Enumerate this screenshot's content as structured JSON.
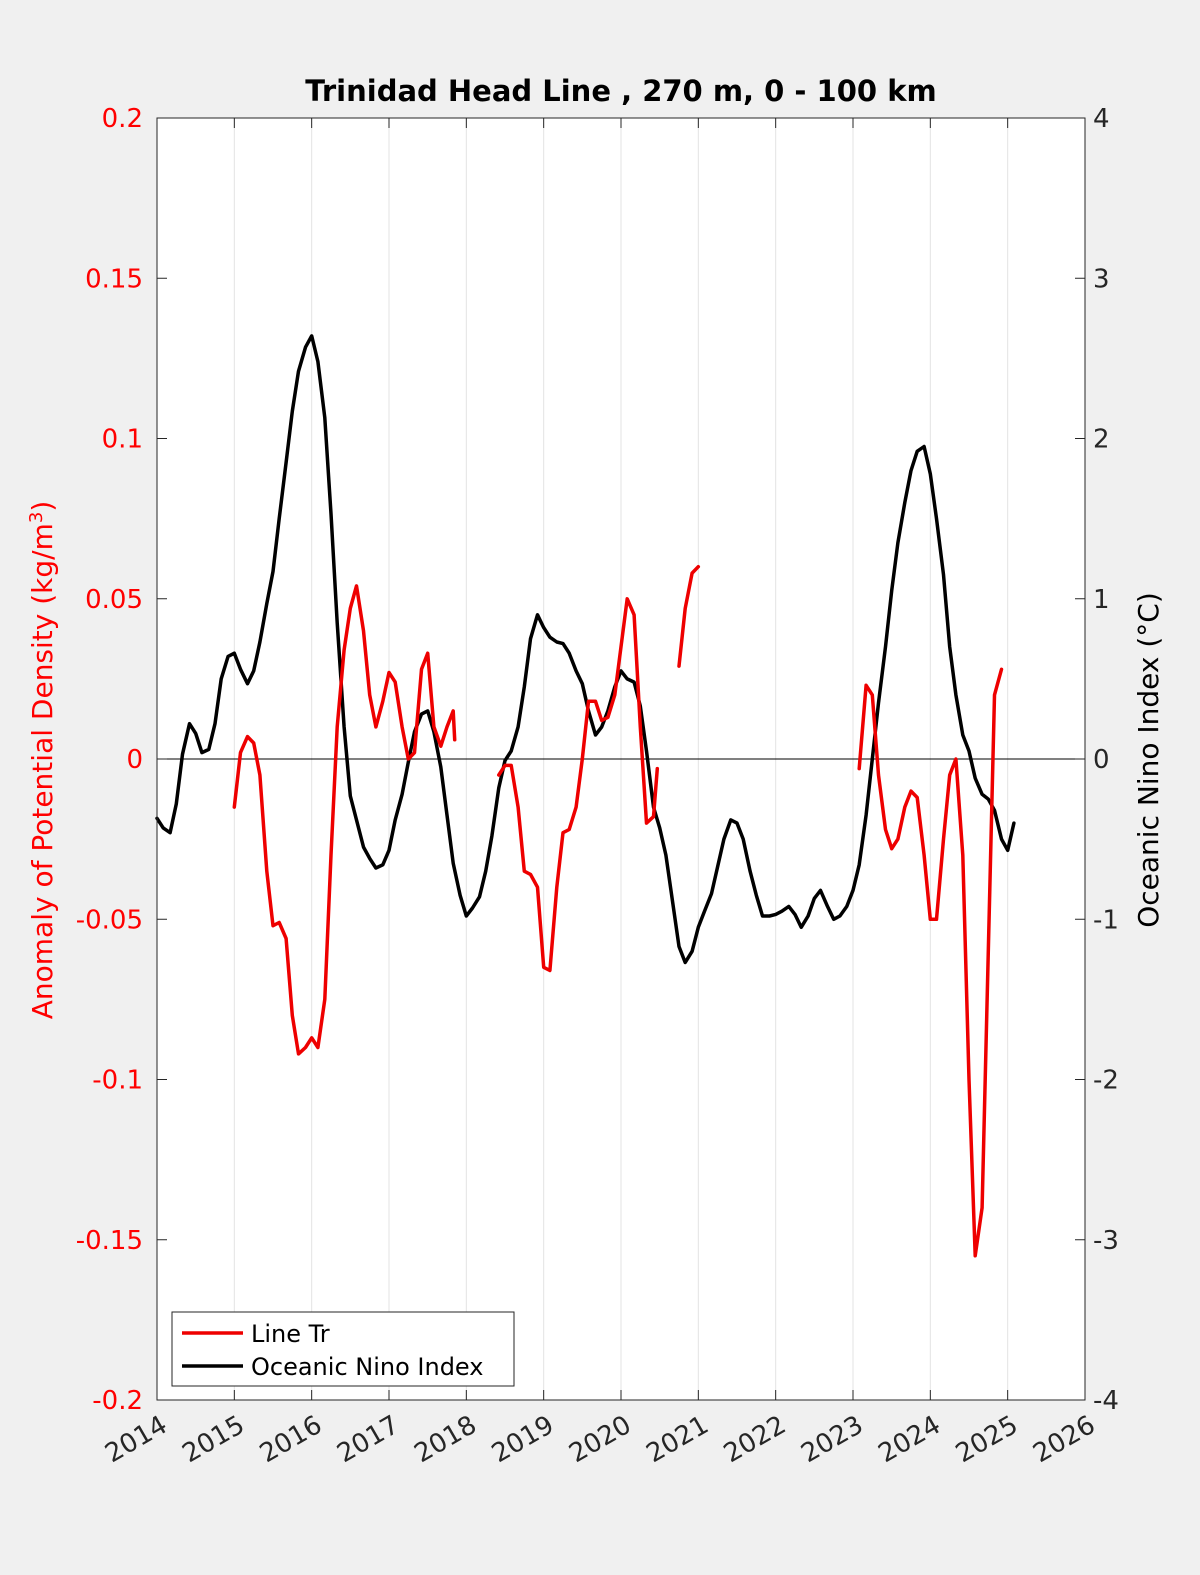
{
  "chart_data": {
    "type": "line",
    "title": "Trinidad Head Line , 270 m, 0 - 100 km",
    "xlabel": "",
    "ylabel_left": "Anomaly of Potential Density (kg/m",
    "ylabel_left_sup": "3",
    "ylabel_left_close": ")",
    "ylabel_right": "Oceanic Nino Index (°C)",
    "xlim": [
      2014,
      2026
    ],
    "ylim_left": [
      -0.2,
      0.2
    ],
    "ylim_right": [
      -4,
      4
    ],
    "x_ticks": [
      "2014",
      "2015",
      "2016",
      "2017",
      "2018",
      "2019",
      "2020",
      "2021",
      "2022",
      "2023",
      "2024",
      "2025",
      "2026"
    ],
    "y_left_ticks": [
      "-0.2",
      "-0.15",
      "-0.1",
      "-0.05",
      "0",
      "0.05",
      "0.1",
      "0.15",
      "0.2"
    ],
    "y_right_ticks": [
      "-4",
      "-3",
      "-2",
      "-1",
      "0",
      "1",
      "2",
      "3",
      "4"
    ],
    "grid": "vertical",
    "zero_line": true,
    "legend_position": "bottom-left",
    "colors": {
      "left_axis": "#ff0000",
      "line_tr": "#ee0000",
      "oni": "#000000",
      "background": "#f0f0f0",
      "plot_bg": "#ffffff"
    },
    "series": [
      {
        "name": "Line Tr",
        "axis": "left",
        "segments": [
          [
            [
              2015.0,
              -0.015
            ],
            [
              2015.08,
              0.002
            ],
            [
              2015.17,
              0.007
            ],
            [
              2015.25,
              0.005
            ],
            [
              2015.33,
              -0.005
            ],
            [
              2015.42,
              -0.035
            ],
            [
              2015.5,
              -0.052
            ],
            [
              2015.58,
              -0.051
            ],
            [
              2015.67,
              -0.056
            ],
            [
              2015.75,
              -0.08
            ],
            [
              2015.83,
              -0.092
            ],
            [
              2015.92,
              -0.09
            ],
            [
              2016.0,
              -0.087
            ],
            [
              2016.08,
              -0.09
            ],
            [
              2016.17,
              -0.075
            ],
            [
              2016.25,
              -0.03
            ],
            [
              2016.33,
              0.01
            ],
            [
              2016.42,
              0.034
            ],
            [
              2016.5,
              0.047
            ],
            [
              2016.58,
              0.054
            ],
            [
              2016.67,
              0.04
            ],
            [
              2016.75,
              0.02
            ],
            [
              2016.83,
              0.01
            ],
            [
              2016.92,
              0.018
            ],
            [
              2017.0,
              0.027
            ],
            [
              2017.08,
              0.024
            ],
            [
              2017.17,
              0.01
            ],
            [
              2017.25,
              0.0
            ],
            [
              2017.33,
              0.002
            ],
            [
              2017.42,
              0.028
            ],
            [
              2017.5,
              0.033
            ],
            [
              2017.58,
              0.01
            ],
            [
              2017.67,
              0.004
            ],
            [
              2017.75,
              0.01
            ],
            [
              2017.83,
              0.015
            ],
            [
              2017.85,
              0.006
            ]
          ],
          [
            [
              2018.42,
              -0.005
            ],
            [
              2018.5,
              -0.002
            ],
            [
              2018.58,
              -0.002
            ],
            [
              2018.67,
              -0.015
            ],
            [
              2018.75,
              -0.035
            ],
            [
              2018.83,
              -0.036
            ],
            [
              2018.92,
              -0.04
            ],
            [
              2019.0,
              -0.065
            ],
            [
              2019.08,
              -0.066
            ],
            [
              2019.17,
              -0.04
            ],
            [
              2019.25,
              -0.023
            ],
            [
              2019.33,
              -0.022
            ],
            [
              2019.42,
              -0.015
            ],
            [
              2019.5,
              0.0
            ],
            [
              2019.58,
              0.018
            ],
            [
              2019.67,
              0.018
            ],
            [
              2019.75,
              0.012
            ],
            [
              2019.83,
              0.013
            ],
            [
              2019.92,
              0.02
            ],
            [
              2020.0,
              0.035
            ],
            [
              2020.08,
              0.05
            ],
            [
              2020.17,
              0.045
            ],
            [
              2020.25,
              0.01
            ],
            [
              2020.33,
              -0.02
            ],
            [
              2020.42,
              -0.018
            ],
            [
              2020.47,
              -0.003
            ]
          ],
          [
            [
              2020.75,
              0.029
            ],
            [
              2020.83,
              0.047
            ],
            [
              2020.92,
              0.058
            ],
            [
              2021.0,
              0.06
            ]
          ],
          [
            [
              2023.08,
              -0.003
            ],
            [
              2023.17,
              0.023
            ],
            [
              2023.25,
              0.02
            ],
            [
              2023.33,
              -0.005
            ],
            [
              2023.42,
              -0.022
            ],
            [
              2023.5,
              -0.028
            ],
            [
              2023.58,
              -0.025
            ],
            [
              2023.67,
              -0.015
            ],
            [
              2023.75,
              -0.01
            ],
            [
              2023.83,
              -0.012
            ],
            [
              2023.92,
              -0.03
            ],
            [
              2024.0,
              -0.05
            ],
            [
              2024.08,
              -0.05
            ],
            [
              2024.17,
              -0.025
            ],
            [
              2024.25,
              -0.005
            ],
            [
              2024.33,
              0.0
            ],
            [
              2024.42,
              -0.03
            ],
            [
              2024.5,
              -0.1
            ],
            [
              2024.58,
              -0.155
            ],
            [
              2024.67,
              -0.14
            ],
            [
              2024.75,
              -0.06
            ],
            [
              2024.83,
              0.02
            ],
            [
              2024.92,
              0.028
            ]
          ]
        ]
      },
      {
        "name": "Oceanic Nino Index",
        "axis": "right",
        "segments": [
          [
            [
              2014.0,
              -0.37
            ],
            [
              2014.08,
              -0.43
            ],
            [
              2014.17,
              -0.46
            ],
            [
              2014.25,
              -0.28
            ],
            [
              2014.33,
              0.03
            ],
            [
              2014.42,
              0.22
            ],
            [
              2014.5,
              0.16
            ],
            [
              2014.58,
              0.04
            ],
            [
              2014.67,
              0.06
            ],
            [
              2014.75,
              0.22
            ],
            [
              2014.83,
              0.5
            ],
            [
              2014.92,
              0.64
            ],
            [
              2015.0,
              0.66
            ],
            [
              2015.08,
              0.56
            ],
            [
              2015.17,
              0.47
            ],
            [
              2015.25,
              0.55
            ],
            [
              2015.33,
              0.73
            ],
            [
              2015.42,
              0.97
            ],
            [
              2015.5,
              1.17
            ],
            [
              2015.58,
              1.5
            ],
            [
              2015.67,
              1.85
            ],
            [
              2015.75,
              2.17
            ],
            [
              2015.83,
              2.42
            ],
            [
              2015.92,
              2.57
            ],
            [
              2016.0,
              2.64
            ],
            [
              2016.08,
              2.48
            ],
            [
              2016.17,
              2.13
            ],
            [
              2016.25,
              1.53
            ],
            [
              2016.33,
              0.85
            ],
            [
              2016.42,
              0.2
            ],
            [
              2016.5,
              -0.23
            ],
            [
              2016.58,
              -0.38
            ],
            [
              2016.67,
              -0.55
            ],
            [
              2016.75,
              -0.62
            ],
            [
              2016.83,
              -0.68
            ],
            [
              2016.92,
              -0.66
            ],
            [
              2017.0,
              -0.57
            ],
            [
              2017.08,
              -0.38
            ],
            [
              2017.17,
              -0.22
            ],
            [
              2017.25,
              -0.02
            ],
            [
              2017.33,
              0.17
            ],
            [
              2017.42,
              0.28
            ],
            [
              2017.5,
              0.3
            ],
            [
              2017.58,
              0.17
            ],
            [
              2017.67,
              -0.05
            ],
            [
              2017.75,
              -0.35
            ],
            [
              2017.83,
              -0.65
            ],
            [
              2017.92,
              -0.85
            ],
            [
              2018.0,
              -0.98
            ],
            [
              2018.08,
              -0.93
            ],
            [
              2018.17,
              -0.86
            ],
            [
              2018.25,
              -0.7
            ],
            [
              2018.33,
              -0.48
            ],
            [
              2018.42,
              -0.18
            ],
            [
              2018.5,
              -0.01
            ],
            [
              2018.58,
              0.05
            ],
            [
              2018.67,
              0.2
            ],
            [
              2018.75,
              0.45
            ],
            [
              2018.83,
              0.75
            ],
            [
              2018.92,
              0.9
            ],
            [
              2019.0,
              0.82
            ],
            [
              2019.08,
              0.76
            ],
            [
              2019.17,
              0.73
            ],
            [
              2019.25,
              0.72
            ],
            [
              2019.33,
              0.66
            ],
            [
              2019.42,
              0.55
            ],
            [
              2019.5,
              0.47
            ],
            [
              2019.58,
              0.3
            ],
            [
              2019.67,
              0.15
            ],
            [
              2019.75,
              0.2
            ],
            [
              2019.83,
              0.3
            ],
            [
              2019.92,
              0.45
            ],
            [
              2020.0,
              0.55
            ],
            [
              2020.08,
              0.5
            ],
            [
              2020.17,
              0.48
            ],
            [
              2020.25,
              0.33
            ],
            [
              2020.33,
              0.05
            ],
            [
              2020.42,
              -0.3
            ],
            [
              2020.5,
              -0.43
            ],
            [
              2020.58,
              -0.6
            ],
            [
              2020.67,
              -0.9
            ],
            [
              2020.75,
              -1.17
            ],
            [
              2020.83,
              -1.27
            ],
            [
              2020.92,
              -1.2
            ],
            [
              2021.0,
              -1.05
            ],
            [
              2021.08,
              -0.95
            ],
            [
              2021.17,
              -0.84
            ],
            [
              2021.25,
              -0.67
            ],
            [
              2021.33,
              -0.5
            ],
            [
              2021.42,
              -0.38
            ],
            [
              2021.5,
              -0.4
            ],
            [
              2021.58,
              -0.5
            ],
            [
              2021.67,
              -0.7
            ],
            [
              2021.75,
              -0.85
            ],
            [
              2021.83,
              -0.98
            ],
            [
              2021.92,
              -0.98
            ],
            [
              2022.0,
              -0.97
            ],
            [
              2022.08,
              -0.95
            ],
            [
              2022.17,
              -0.92
            ],
            [
              2022.25,
              -0.97
            ],
            [
              2022.33,
              -1.05
            ],
            [
              2022.42,
              -0.98
            ],
            [
              2022.5,
              -0.87
            ],
            [
              2022.58,
              -0.82
            ],
            [
              2022.67,
              -0.92
            ],
            [
              2022.75,
              -1.0
            ],
            [
              2022.83,
              -0.98
            ],
            [
              2022.92,
              -0.92
            ],
            [
              2023.0,
              -0.82
            ],
            [
              2023.08,
              -0.66
            ],
            [
              2023.17,
              -0.35
            ],
            [
              2023.25,
              0.0
            ],
            [
              2023.33,
              0.35
            ],
            [
              2023.42,
              0.7
            ],
            [
              2023.5,
              1.05
            ],
            [
              2023.58,
              1.35
            ],
            [
              2023.67,
              1.6
            ],
            [
              2023.75,
              1.8
            ],
            [
              2023.83,
              1.92
            ],
            [
              2023.92,
              1.95
            ],
            [
              2024.0,
              1.78
            ],
            [
              2024.08,
              1.5
            ],
            [
              2024.17,
              1.15
            ],
            [
              2024.25,
              0.7
            ],
            [
              2024.33,
              0.4
            ],
            [
              2024.42,
              0.15
            ],
            [
              2024.5,
              0.05
            ],
            [
              2024.58,
              -0.12
            ],
            [
              2024.67,
              -0.22
            ],
            [
              2024.75,
              -0.25
            ],
            [
              2024.83,
              -0.32
            ],
            [
              2024.92,
              -0.5
            ],
            [
              2025.0,
              -0.57
            ],
            [
              2025.08,
              -0.4
            ]
          ]
        ]
      }
    ]
  }
}
